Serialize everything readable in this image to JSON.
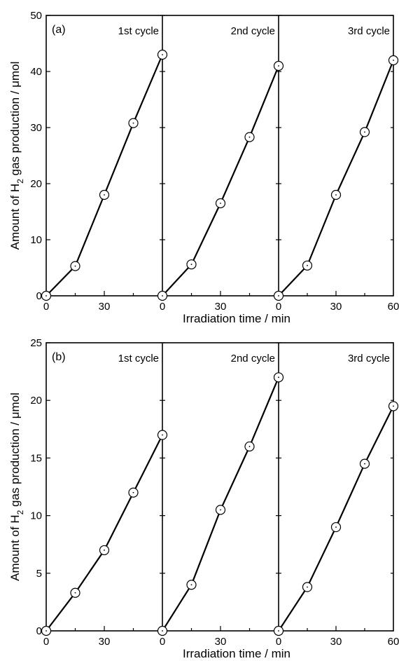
{
  "chart_data": [
    {
      "type": "line",
      "panel_label": "(a)",
      "xlabel": "Irradiation time / min",
      "ylabel_parts": [
        "Amount of H",
        "2",
        " gas production / μmol"
      ],
      "ylim": [
        0,
        50
      ],
      "yticks": [
        0,
        10,
        20,
        30,
        40,
        50
      ],
      "xlim": [
        0,
        60
      ],
      "xticks": [
        0,
        30
      ],
      "last_xticks": [
        0,
        30,
        60
      ],
      "grid": false,
      "cycles": [
        {
          "name": "1st cycle",
          "label_align": "right",
          "x": [
            0,
            15,
            30,
            45,
            60
          ],
          "y": [
            0,
            5.3,
            18,
            30.8,
            43
          ]
        },
        {
          "name": "2nd cycle",
          "label_align": "right",
          "x": [
            0,
            15,
            30,
            45,
            60
          ],
          "y": [
            0,
            5.6,
            16.5,
            28.3,
            41
          ]
        },
        {
          "name": "3rd cycle",
          "label_align": "right",
          "x": [
            0,
            15,
            30,
            45,
            60
          ],
          "y": [
            0,
            5.4,
            18,
            29.2,
            42
          ]
        }
      ]
    },
    {
      "type": "line",
      "panel_label": "(b)",
      "xlabel": "Irradiation time / min",
      "ylabel_parts": [
        "Amount of H",
        "2",
        " gas production / μmol"
      ],
      "ylim": [
        0,
        25
      ],
      "yticks": [
        0,
        5,
        10,
        15,
        20,
        25
      ],
      "xlim": [
        0,
        60
      ],
      "xticks": [
        0,
        30
      ],
      "last_xticks": [
        0,
        30,
        60
      ],
      "grid": false,
      "cycles": [
        {
          "name": "1st cycle",
          "label_align": "right",
          "x": [
            0,
            15,
            30,
            45,
            60
          ],
          "y": [
            0,
            3.3,
            7,
            12,
            17
          ]
        },
        {
          "name": "2nd cycle",
          "label_align": "right",
          "x": [
            0,
            15,
            30,
            45,
            60
          ],
          "y": [
            0,
            4,
            10.5,
            16,
            22
          ]
        },
        {
          "name": "3rd cycle",
          "label_align": "right",
          "x": [
            0,
            15,
            30,
            45,
            60
          ],
          "y": [
            0,
            3.8,
            9,
            14.5,
            19.5
          ]
        }
      ]
    }
  ]
}
